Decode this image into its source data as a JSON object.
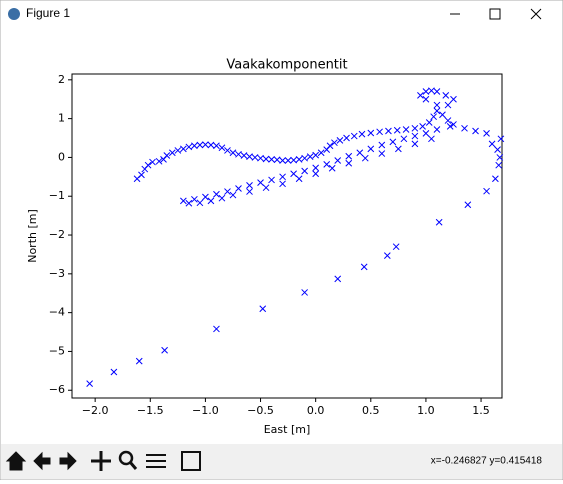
{
  "window": {
    "title": "Figure 1",
    "status": "x=-0.246827    y=0.415418"
  },
  "chart_data": {
    "type": "scatter",
    "title": "Vaakakomponentit",
    "x_label": "East [m]",
    "y_label": "North [m]",
    "color": "#0000ff",
    "marker": "x",
    "x": [
      -1.62,
      -1.58,
      -1.55,
      -1.52,
      -1.48,
      -1.42,
      -1.38,
      -1.35,
      -1.3,
      -1.25,
      -1.2,
      -1.15,
      -1.1,
      -1.05,
      -1.0,
      -0.95,
      -0.9,
      -0.85,
      -0.8,
      -0.75,
      -0.7,
      -0.65,
      -0.6,
      -0.55,
      -0.5,
      -0.45,
      -0.4,
      -0.35,
      -0.3,
      -0.25,
      -0.2,
      -0.15,
      -0.1,
      -0.05,
      0.0,
      0.05,
      0.1,
      0.13,
      0.17,
      0.22,
      0.28,
      0.35,
      0.42,
      0.5,
      0.58,
      0.66,
      0.74,
      0.82,
      0.9,
      0.97,
      1.03,
      1.07,
      1.1,
      1.1,
      1.0,
      0.95,
      1.0,
      1.05,
      1.1,
      1.18,
      1.25,
      1.2,
      1.15,
      1.2,
      1.25,
      1.22,
      1.1,
      1.0,
      0.9,
      0.8,
      0.7,
      0.6,
      0.5,
      0.4,
      0.3,
      0.2,
      0.1,
      0.0,
      -0.1,
      -0.2,
      -0.3,
      -0.4,
      -0.5,
      -0.6,
      -0.7,
      -0.8,
      -0.9,
      -1.0,
      -1.1,
      -1.2,
      -1.15,
      -1.05,
      -0.95,
      -0.85,
      -0.75,
      -0.6,
      -0.45,
      -0.3,
      -0.15,
      0.0,
      0.15,
      0.3,
      0.45,
      0.6,
      0.75,
      0.9,
      1.05,
      1.35,
      1.45,
      1.55,
      1.68,
      1.6,
      1.65,
      1.67,
      1.66,
      1.63,
      1.55,
      1.38,
      1.12,
      0.73,
      0.65,
      0.44,
      0.2,
      -0.1,
      -0.48,
      -0.9,
      -1.37,
      -1.6,
      -1.83,
      -2.05
    ],
    "y": [
      -0.55,
      -0.45,
      -0.3,
      -0.2,
      -0.12,
      -0.1,
      -0.05,
      0.05,
      0.12,
      0.18,
      0.22,
      0.27,
      0.3,
      0.32,
      0.33,
      0.32,
      0.3,
      0.25,
      0.18,
      0.12,
      0.08,
      0.05,
      0.02,
      0.0,
      -0.02,
      -0.04,
      -0.05,
      -0.06,
      -0.08,
      -0.08,
      -0.07,
      -0.05,
      -0.02,
      0.02,
      0.06,
      0.12,
      0.2,
      0.3,
      0.38,
      0.44,
      0.5,
      0.55,
      0.6,
      0.63,
      0.66,
      0.68,
      0.7,
      0.72,
      0.75,
      0.8,
      0.9,
      1.05,
      1.2,
      1.35,
      1.5,
      1.6,
      1.7,
      1.72,
      1.7,
      1.6,
      1.5,
      1.35,
      1.1,
      0.95,
      0.85,
      0.8,
      0.72,
      0.62,
      0.55,
      0.48,
      0.4,
      0.32,
      0.22,
      0.12,
      0.03,
      -0.08,
      -0.18,
      -0.27,
      -0.35,
      -0.42,
      -0.5,
      -0.58,
      -0.65,
      -0.72,
      -0.8,
      -0.88,
      -0.95,
      -1.02,
      -1.08,
      -1.12,
      -1.18,
      -1.17,
      -1.12,
      -1.05,
      -0.97,
      -0.88,
      -0.78,
      -0.68,
      -0.55,
      -0.42,
      -0.28,
      -0.15,
      -0.02,
      0.1,
      0.22,
      0.35,
      0.48,
      0.75,
      0.68,
      0.62,
      0.48,
      0.35,
      0.2,
      0.0,
      -0.2,
      -0.55,
      -0.87,
      -1.22,
      -1.67,
      -2.3,
      -2.53,
      -2.82,
      -3.13,
      -3.48,
      -3.9,
      -4.42,
      -4.97,
      -5.25,
      -5.53,
      -5.83
    ],
    "xlim": [
      -2.21,
      1.69
    ],
    "xticks": [
      {
        "value": -2,
        "label": "−2.0"
      },
      {
        "value": -1.5,
        "label": "−1.5"
      },
      {
        "value": -1,
        "label": "−1.0"
      },
      {
        "value": -0.5,
        "label": "−0.5"
      },
      {
        "value": 0,
        "label": "0.0"
      },
      0.5,
      {
        "value": 1,
        "label": "1.0"
      },
      1.5
    ],
    "ylim": [
      -6.2,
      2.15
    ],
    "yticks": [
      {
        "value": -6,
        "label": "−6"
      },
      {
        "value": -5,
        "label": "−5"
      },
      {
        "value": -4,
        "label": "−4"
      },
      {
        "value": -3,
        "label": "−3"
      },
      {
        "value": -2,
        "label": "−2"
      },
      {
        "value": -1,
        "label": "−1"
      },
      0,
      1,
      2
    ],
    "grid": false
  }
}
